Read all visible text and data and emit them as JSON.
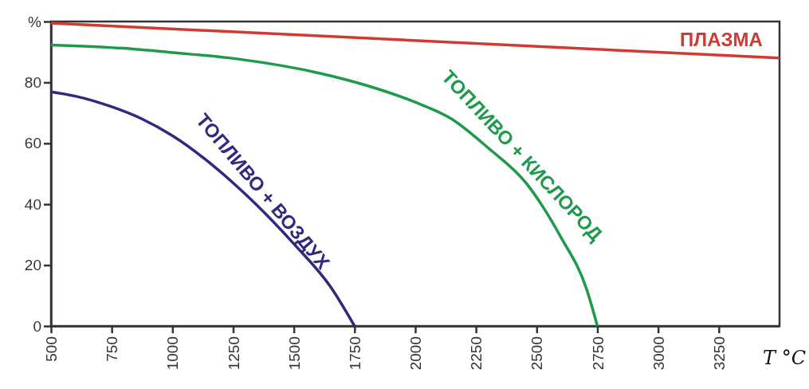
{
  "chart_data": {
    "type": "line",
    "xlabel": "T °C",
    "xlim": [
      500,
      3500
    ],
    "xticks": [
      500,
      750,
      1000,
      1250,
      1500,
      1750,
      2000,
      2250,
      2500,
      2750,
      3000,
      3250
    ],
    "ylim": [
      0,
      100
    ],
    "yticks": [
      0,
      20,
      40,
      60,
      80,
      {
        "value": 100,
        "label": "%"
      }
    ],
    "grid": false,
    "marker": "none",
    "line_style": "solid",
    "series": [
      {
        "name": "ТОПЛИВО + ВОЗДУХ",
        "color": "#2e2a7e",
        "x": [
          500,
          600,
          750,
          875,
          1000,
          1250,
          1500,
          1650,
          1750
        ],
        "values": [
          76.9,
          75.5,
          72,
          68,
          62.5,
          47,
          27,
          13,
          0
        ]
      },
      {
        "name": "ТОПЛИВО + КИСЛОРОД",
        "color": "#1f9a4a",
        "x": [
          500,
          800,
          1000,
          1278,
          1608,
          1800,
          2000,
          2150,
          2300,
          2456,
          2598,
          2706,
          2750
        ],
        "values": [
          92.3,
          91.2,
          89.8,
          87.6,
          83,
          79,
          73.5,
          68,
          58.5,
          47,
          29.4,
          12,
          0
        ]
      },
      {
        "name": "ПЛАЗМА",
        "color": "#d03a30",
        "x": [
          500,
          3500
        ],
        "values": [
          99.5,
          88
        ]
      }
    ]
  }
}
